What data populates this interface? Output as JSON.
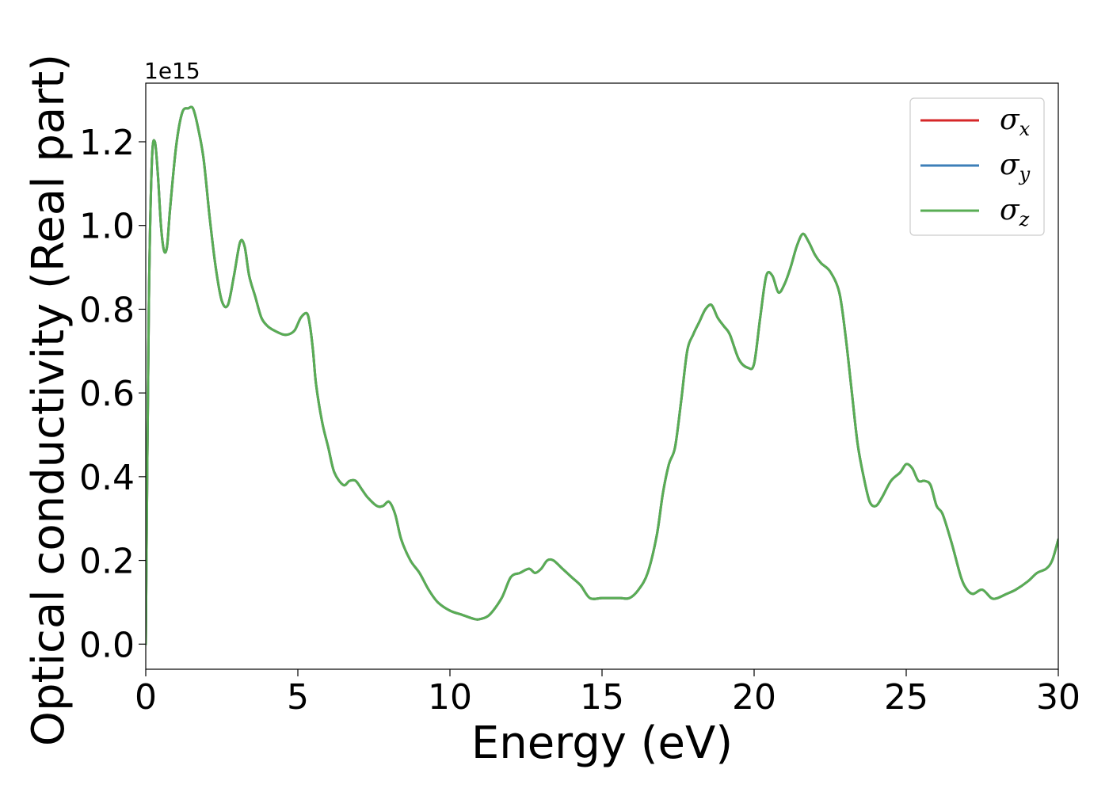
{
  "chart_data": {
    "type": "line",
    "xlabel": "Energy (eV)",
    "ylabel": "Optical conductivity (Real part)",
    "y_offset_label": "1e15",
    "y_scale_factor": 1000000000000000.0,
    "xlim": [
      0,
      30
    ],
    "ylim": [
      -0.06,
      1.34
    ],
    "xticks": [
      0,
      5,
      10,
      15,
      20,
      25,
      30
    ],
    "xtick_labels": [
      "0",
      "5",
      "10",
      "15",
      "20",
      "25",
      "30"
    ],
    "yticks": [
      0.0,
      0.2,
      0.4,
      0.6,
      0.8,
      1.0,
      1.2
    ],
    "ytick_labels": [
      "0.0",
      "0.2",
      "0.4",
      "0.6",
      "0.8",
      "1.0",
      "1.2"
    ],
    "grid": false,
    "legend_position": "upper right",
    "x": [
      0,
      0.1,
      0.2,
      0.3,
      0.4,
      0.5,
      0.6,
      0.7,
      0.8,
      1.0,
      1.2,
      1.4,
      1.55,
      1.7,
      1.9,
      2.1,
      2.3,
      2.5,
      2.7,
      2.9,
      3.1,
      3.25,
      3.4,
      3.6,
      3.8,
      4.0,
      4.2,
      4.5,
      4.7,
      4.9,
      5.1,
      5.3,
      5.4,
      5.5,
      5.6,
      5.8,
      6.0,
      6.2,
      6.5,
      6.7,
      6.9,
      7.1,
      7.3,
      7.6,
      7.8,
      8.0,
      8.2,
      8.4,
      8.7,
      9.0,
      9.3,
      9.6,
      10.0,
      10.4,
      10.8,
      11.0,
      11.3,
      11.7,
      12.0,
      12.3,
      12.6,
      12.8,
      13.0,
      13.2,
      13.4,
      13.7,
      14.0,
      14.3,
      14.6,
      15.0,
      15.3,
      15.6,
      15.9,
      16.2,
      16.5,
      16.8,
      17.0,
      17.2,
      17.4,
      17.6,
      17.8,
      18.0,
      18.2,
      18.4,
      18.6,
      18.8,
      19.0,
      19.2,
      19.5,
      19.8,
      20.0,
      20.2,
      20.4,
      20.6,
      20.8,
      21.0,
      21.2,
      21.4,
      21.6,
      21.8,
      22.0,
      22.2,
      22.5,
      22.8,
      23.0,
      23.2,
      23.4,
      23.6,
      23.8,
      24.0,
      24.2,
      24.5,
      24.8,
      25.0,
      25.2,
      25.4,
      25.6,
      25.8,
      26.0,
      26.2,
      26.5,
      26.8,
      27.0,
      27.2,
      27.5,
      27.8,
      28.0,
      28.3,
      28.6,
      29.0,
      29.3,
      29.6,
      29.8,
      30.0
    ],
    "series": [
      {
        "name": "σx",
        "name_base": "σ",
        "name_sub": "x",
        "color": "#d62728",
        "values": [
          0.0,
          0.8,
          1.15,
          1.2,
          1.12,
          1.0,
          0.94,
          0.95,
          1.04,
          1.19,
          1.27,
          1.28,
          1.28,
          1.24,
          1.16,
          1.02,
          0.9,
          0.82,
          0.81,
          0.88,
          0.96,
          0.95,
          0.88,
          0.83,
          0.78,
          0.76,
          0.75,
          0.74,
          0.74,
          0.75,
          0.78,
          0.79,
          0.76,
          0.7,
          0.62,
          0.53,
          0.47,
          0.41,
          0.38,
          0.39,
          0.39,
          0.37,
          0.35,
          0.33,
          0.33,
          0.34,
          0.31,
          0.25,
          0.2,
          0.17,
          0.13,
          0.1,
          0.08,
          0.07,
          0.06,
          0.06,
          0.07,
          0.11,
          0.16,
          0.17,
          0.18,
          0.17,
          0.18,
          0.2,
          0.2,
          0.18,
          0.16,
          0.14,
          0.11,
          0.11,
          0.11,
          0.11,
          0.11,
          0.13,
          0.17,
          0.26,
          0.36,
          0.43,
          0.47,
          0.58,
          0.7,
          0.74,
          0.77,
          0.8,
          0.81,
          0.78,
          0.76,
          0.74,
          0.68,
          0.66,
          0.67,
          0.78,
          0.88,
          0.88,
          0.84,
          0.86,
          0.9,
          0.95,
          0.98,
          0.96,
          0.93,
          0.91,
          0.89,
          0.84,
          0.74,
          0.61,
          0.48,
          0.4,
          0.34,
          0.33,
          0.35,
          0.39,
          0.41,
          0.43,
          0.42,
          0.39,
          0.39,
          0.38,
          0.33,
          0.31,
          0.24,
          0.16,
          0.13,
          0.12,
          0.13,
          0.11,
          0.11,
          0.12,
          0.13,
          0.15,
          0.17,
          0.18,
          0.2,
          0.25
        ]
      },
      {
        "name": "σy",
        "name_base": "σ",
        "name_sub": "y",
        "color": "#3d7fb8",
        "values": [
          0.0,
          0.8,
          1.15,
          1.2,
          1.12,
          1.0,
          0.94,
          0.95,
          1.04,
          1.19,
          1.27,
          1.28,
          1.28,
          1.24,
          1.16,
          1.02,
          0.9,
          0.82,
          0.81,
          0.88,
          0.96,
          0.95,
          0.88,
          0.83,
          0.78,
          0.76,
          0.75,
          0.74,
          0.74,
          0.75,
          0.78,
          0.79,
          0.76,
          0.7,
          0.62,
          0.53,
          0.47,
          0.41,
          0.38,
          0.39,
          0.39,
          0.37,
          0.35,
          0.33,
          0.33,
          0.34,
          0.31,
          0.25,
          0.2,
          0.17,
          0.13,
          0.1,
          0.08,
          0.07,
          0.06,
          0.06,
          0.07,
          0.11,
          0.16,
          0.17,
          0.18,
          0.17,
          0.18,
          0.2,
          0.2,
          0.18,
          0.16,
          0.14,
          0.11,
          0.11,
          0.11,
          0.11,
          0.11,
          0.13,
          0.17,
          0.26,
          0.36,
          0.43,
          0.47,
          0.58,
          0.7,
          0.74,
          0.77,
          0.8,
          0.81,
          0.78,
          0.76,
          0.74,
          0.68,
          0.66,
          0.67,
          0.78,
          0.88,
          0.88,
          0.84,
          0.86,
          0.9,
          0.95,
          0.98,
          0.96,
          0.93,
          0.91,
          0.89,
          0.84,
          0.74,
          0.61,
          0.48,
          0.4,
          0.34,
          0.33,
          0.35,
          0.39,
          0.41,
          0.43,
          0.42,
          0.39,
          0.39,
          0.38,
          0.33,
          0.31,
          0.24,
          0.16,
          0.13,
          0.12,
          0.13,
          0.11,
          0.11,
          0.12,
          0.13,
          0.15,
          0.17,
          0.18,
          0.2,
          0.25
        ]
      },
      {
        "name": "σz",
        "name_base": "σ",
        "name_sub": "z",
        "color": "#59ad54",
        "values": [
          0.0,
          0.8,
          1.15,
          1.2,
          1.12,
          1.0,
          0.94,
          0.95,
          1.04,
          1.19,
          1.27,
          1.28,
          1.28,
          1.24,
          1.16,
          1.02,
          0.9,
          0.82,
          0.81,
          0.88,
          0.96,
          0.95,
          0.88,
          0.83,
          0.78,
          0.76,
          0.75,
          0.74,
          0.74,
          0.75,
          0.78,
          0.79,
          0.76,
          0.7,
          0.62,
          0.53,
          0.47,
          0.41,
          0.38,
          0.39,
          0.39,
          0.37,
          0.35,
          0.33,
          0.33,
          0.34,
          0.31,
          0.25,
          0.2,
          0.17,
          0.13,
          0.1,
          0.08,
          0.07,
          0.06,
          0.06,
          0.07,
          0.11,
          0.16,
          0.17,
          0.18,
          0.17,
          0.18,
          0.2,
          0.2,
          0.18,
          0.16,
          0.14,
          0.11,
          0.11,
          0.11,
          0.11,
          0.11,
          0.13,
          0.17,
          0.26,
          0.36,
          0.43,
          0.47,
          0.58,
          0.7,
          0.74,
          0.77,
          0.8,
          0.81,
          0.78,
          0.76,
          0.74,
          0.68,
          0.66,
          0.67,
          0.78,
          0.88,
          0.88,
          0.84,
          0.86,
          0.9,
          0.95,
          0.98,
          0.96,
          0.93,
          0.91,
          0.89,
          0.84,
          0.74,
          0.61,
          0.48,
          0.4,
          0.34,
          0.33,
          0.35,
          0.39,
          0.41,
          0.43,
          0.42,
          0.39,
          0.39,
          0.38,
          0.33,
          0.31,
          0.24,
          0.16,
          0.13,
          0.12,
          0.13,
          0.11,
          0.11,
          0.12,
          0.13,
          0.15,
          0.17,
          0.18,
          0.2,
          0.25
        ]
      }
    ]
  }
}
